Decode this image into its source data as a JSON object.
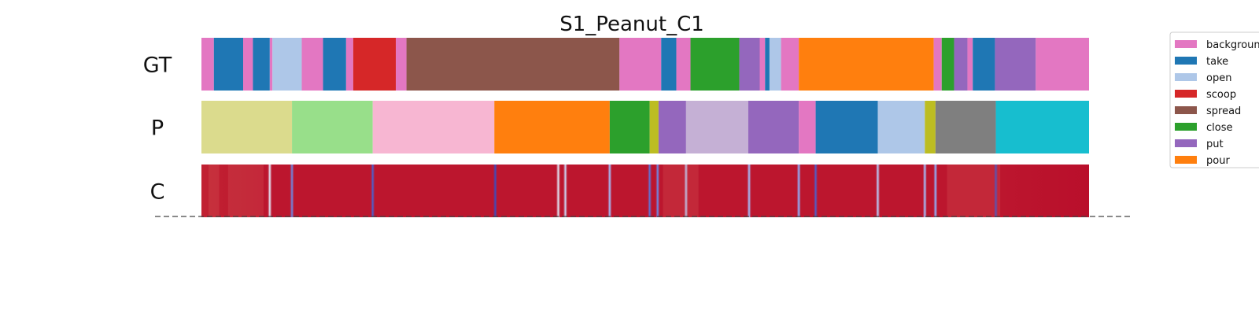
{
  "chart_data": {
    "type": "segmentation",
    "title": "S1_Peanut_C1",
    "x_range": [
      0,
      1000
    ],
    "rows": [
      {
        "label": "GT",
        "kind": "segments",
        "segments": [
          {
            "start": 0,
            "end": 14,
            "class": "background"
          },
          {
            "start": 14,
            "end": 47,
            "class": "take"
          },
          {
            "start": 47,
            "end": 58,
            "class": "background"
          },
          {
            "start": 58,
            "end": 77,
            "class": "take"
          },
          {
            "start": 77,
            "end": 80,
            "class": "background"
          },
          {
            "start": 80,
            "end": 113,
            "class": "open"
          },
          {
            "start": 113,
            "end": 137,
            "class": "background"
          },
          {
            "start": 137,
            "end": 163,
            "class": "take"
          },
          {
            "start": 163,
            "end": 171,
            "class": "background"
          },
          {
            "start": 171,
            "end": 219,
            "class": "scoop"
          },
          {
            "start": 219,
            "end": 231,
            "class": "background"
          },
          {
            "start": 231,
            "end": 471,
            "class": "spread"
          },
          {
            "start": 471,
            "end": 518,
            "class": "background"
          },
          {
            "start": 518,
            "end": 535,
            "class": "take"
          },
          {
            "start": 535,
            "end": 551,
            "class": "background"
          },
          {
            "start": 551,
            "end": 606,
            "class": "close"
          },
          {
            "start": 606,
            "end": 629,
            "class": "put"
          },
          {
            "start": 629,
            "end": 635,
            "class": "background"
          },
          {
            "start": 635,
            "end": 640,
            "class": "take"
          },
          {
            "start": 640,
            "end": 653,
            "class": "open"
          },
          {
            "start": 653,
            "end": 673,
            "class": "background"
          },
          {
            "start": 673,
            "end": 825,
            "class": "pour"
          },
          {
            "start": 825,
            "end": 834,
            "class": "background"
          },
          {
            "start": 834,
            "end": 848,
            "class": "close"
          },
          {
            "start": 848,
            "end": 863,
            "class": "put"
          },
          {
            "start": 863,
            "end": 869,
            "class": "background"
          },
          {
            "start": 869,
            "end": 894,
            "class": "take"
          },
          {
            "start": 894,
            "end": 940,
            "class": "put"
          },
          {
            "start": 940,
            "end": 1000,
            "class": "background"
          }
        ]
      },
      {
        "label": "P",
        "kind": "segments",
        "segments": [
          {
            "start": 0,
            "end": 102,
            "class": "p0"
          },
          {
            "start": 102,
            "end": 193,
            "class": "p1"
          },
          {
            "start": 193,
            "end": 330,
            "class": "p2"
          },
          {
            "start": 330,
            "end": 460,
            "class": "pour"
          },
          {
            "start": 460,
            "end": 505,
            "class": "close"
          },
          {
            "start": 505,
            "end": 515,
            "class": "p3"
          },
          {
            "start": 515,
            "end": 546,
            "class": "put"
          },
          {
            "start": 546,
            "end": 616,
            "class": "p4"
          },
          {
            "start": 616,
            "end": 673,
            "class": "put"
          },
          {
            "start": 673,
            "end": 692,
            "class": "background"
          },
          {
            "start": 692,
            "end": 762,
            "class": "take"
          },
          {
            "start": 762,
            "end": 815,
            "class": "open"
          },
          {
            "start": 815,
            "end": 827,
            "class": "p3"
          },
          {
            "start": 827,
            "end": 895,
            "class": "p5"
          },
          {
            "start": 895,
            "end": 1000,
            "class": "p6"
          }
        ]
      },
      {
        "label": "C",
        "kind": "confidence",
        "dips": [
          {
            "x": 77,
            "v": 0.45
          },
          {
            "x": 102,
            "v": 0.15
          },
          {
            "x": 193,
            "v": 0.05
          },
          {
            "x": 331,
            "v": 0.0
          },
          {
            "x": 402,
            "v": 0.45
          },
          {
            "x": 410,
            "v": 0.4
          },
          {
            "x": 460,
            "v": 0.3
          },
          {
            "x": 505,
            "v": 0.1
          },
          {
            "x": 514,
            "v": 0.15
          },
          {
            "x": 546,
            "v": 0.35
          },
          {
            "x": 617,
            "v": 0.3
          },
          {
            "x": 673,
            "v": 0.25
          },
          {
            "x": 692,
            "v": 0.05
          },
          {
            "x": 762,
            "v": 0.35
          },
          {
            "x": 815,
            "v": 0.3
          },
          {
            "x": 827,
            "v": 0.25
          },
          {
            "x": 895,
            "v": 0.0
          }
        ]
      }
    ],
    "legend": {
      "position": "right",
      "items": [
        {
          "label": "background",
          "color": "#e377c2"
        },
        {
          "label": "take",
          "color": "#1f77b4"
        },
        {
          "label": "open",
          "color": "#aec7e8"
        },
        {
          "label": "scoop",
          "color": "#d62728"
        },
        {
          "label": "spread",
          "color": "#8c564b"
        },
        {
          "label": "close",
          "color": "#2ca02c"
        },
        {
          "label": "put",
          "color": "#9467bd"
        },
        {
          "label": "pour",
          "color": "#ff7f0e"
        }
      ]
    },
    "colors": {
      "background": "#e377c2",
      "take": "#1f77b4",
      "open": "#aec7e8",
      "scoop": "#d62728",
      "spread": "#8c564b",
      "close": "#2ca02c",
      "put": "#9467bd",
      "pour": "#ff7f0e",
      "p0": "#dbdb8d",
      "p1": "#98df8a",
      "p2": "#f7b6d2",
      "p3": "#bcbd22",
      "p4": "#c5b0d5",
      "p5": "#7f7f7f",
      "p6": "#17becf"
    },
    "confidence_colormap": "seismic-like",
    "confidence_base": "#b40426",
    "grid": false,
    "baseline_dashed": true
  }
}
